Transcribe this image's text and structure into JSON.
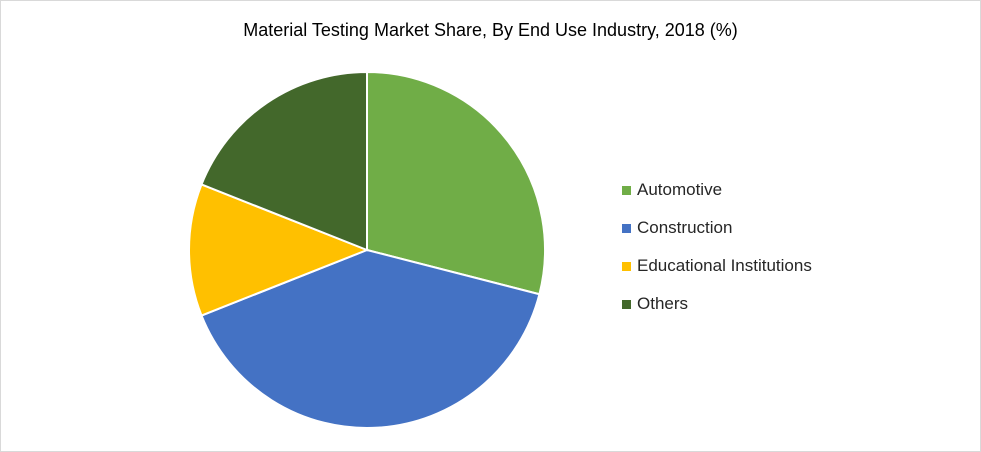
{
  "chart_data": {
    "type": "pie",
    "title": "Material Testing Market Share, By End Use Industry, 2018 (%)",
    "categories": [
      "Automotive",
      "Construction",
      "Educational Institutions",
      "Others"
    ],
    "values": [
      29,
      40,
      12,
      19
    ],
    "colors": [
      "#70ad47",
      "#4472c4",
      "#ffc000",
      "#43682b"
    ],
    "slice_border_color": "#ffffff",
    "start_angle_deg": 0,
    "direction": "clockwise",
    "legend_position": "right"
  }
}
